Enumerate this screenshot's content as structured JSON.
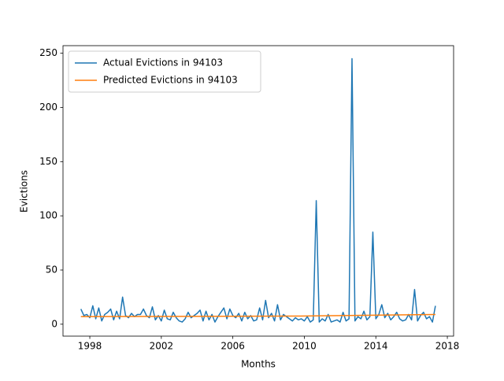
{
  "chart_data": {
    "type": "line",
    "xlabel": "Months",
    "ylabel": "Evictions",
    "x": [
      1997.5,
      1997.667,
      1997.833,
      1998,
      1998.167,
      1998.333,
      1998.5,
      1998.667,
      1998.833,
      1999,
      1999.167,
      1999.333,
      1999.5,
      1999.667,
      1999.833,
      2000,
      2000.167,
      2000.333,
      2000.5,
      2000.667,
      2000.833,
      2001,
      2001.167,
      2001.333,
      2001.5,
      2001.667,
      2001.833,
      2002,
      2002.167,
      2002.333,
      2002.5,
      2002.667,
      2002.833,
      2003,
      2003.167,
      2003.333,
      2003.5,
      2003.667,
      2003.833,
      2004,
      2004.167,
      2004.333,
      2004.5,
      2004.667,
      2004.833,
      2005,
      2005.167,
      2005.333,
      2005.5,
      2005.667,
      2005.833,
      2006,
      2006.167,
      2006.333,
      2006.5,
      2006.667,
      2006.833,
      2007,
      2007.167,
      2007.333,
      2007.5,
      2007.667,
      2007.833,
      2008,
      2008.167,
      2008.333,
      2008.5,
      2008.667,
      2008.833,
      2009,
      2009.167,
      2009.333,
      2009.5,
      2009.667,
      2009.833,
      2010,
      2010.167,
      2010.333,
      2010.5,
      2010.667,
      2010.833,
      2011,
      2011.167,
      2011.333,
      2011.5,
      2011.667,
      2011.833,
      2012,
      2012.167,
      2012.333,
      2012.5,
      2012.667,
      2012.833,
      2013,
      2013.167,
      2013.333,
      2013.5,
      2013.667,
      2013.833,
      2014,
      2014.167,
      2014.333,
      2014.5,
      2014.667,
      2014.833,
      2015,
      2015.167,
      2015.333,
      2015.5,
      2015.667,
      2015.833,
      2016,
      2016.167,
      2016.333,
      2016.5,
      2016.667,
      2016.833,
      2017,
      2017.167,
      2017.333
    ],
    "series": [
      {
        "name": "Actual Evictions in 94103",
        "color": "#1f77b4",
        "values": [
          14,
          8,
          9,
          6,
          17,
          5,
          15,
          3,
          9,
          11,
          14,
          4,
          12,
          5,
          25,
          8,
          6,
          10,
          7,
          9,
          9,
          14,
          8,
          6,
          16,
          4,
          8,
          3,
          13,
          5,
          4,
          11,
          6,
          3,
          2,
          5,
          11,
          6,
          8,
          10,
          13,
          3,
          12,
          4,
          9,
          2,
          7,
          11,
          15,
          5,
          14,
          8,
          6,
          10,
          3,
          11,
          5,
          8,
          3,
          4,
          15,
          4,
          22,
          6,
          10,
          3,
          18,
          4,
          9,
          7,
          5,
          3,
          6,
          4,
          5,
          3,
          7,
          2,
          4,
          114,
          2,
          5,
          3,
          9,
          2,
          3,
          4,
          2,
          11,
          3,
          5,
          245,
          3,
          7,
          5,
          12,
          4,
          7,
          85,
          5,
          9,
          18,
          6,
          10,
          4,
          7,
          11,
          5,
          3,
          4,
          9,
          4,
          32,
          3,
          8,
          11,
          5,
          7,
          2,
          17
        ]
      },
      {
        "name": "Predicted Evictions in 94103",
        "color": "#ff7f0e",
        "x": [
          1997.5,
          2009.5,
          2017.333
        ],
        "values": [
          7,
          7.5,
          9
        ]
      }
    ],
    "xlim": [
      1996.5,
      2018.35
    ],
    "xticks": [
      1998,
      2002,
      2006,
      2010,
      2014,
      2018
    ],
    "ylim": [
      -11,
      257
    ],
    "yticks": [
      0,
      50,
      100,
      150,
      200,
      250
    ],
    "legend": "upper left"
  }
}
